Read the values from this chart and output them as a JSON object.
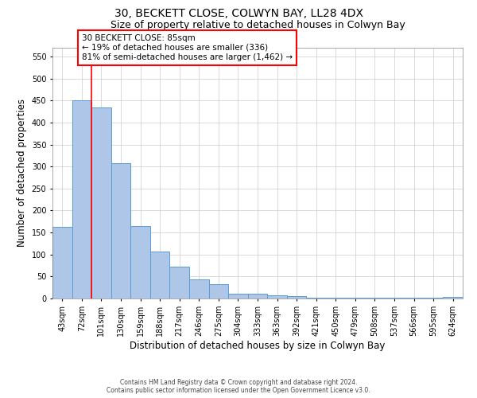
{
  "title1": "30, BECKETT CLOSE, COLWYN BAY, LL28 4DX",
  "title2": "Size of property relative to detached houses in Colwyn Bay",
  "xlabel": "Distribution of detached houses by size in Colwyn Bay",
  "ylabel": "Number of detached properties",
  "footer1": "Contains HM Land Registry data © Crown copyright and database right 2024.",
  "footer2": "Contains public sector information licensed under the Open Government Licence v3.0.",
  "bar_labels": [
    "43sqm",
    "72sqm",
    "101sqm",
    "130sqm",
    "159sqm",
    "188sqm",
    "217sqm",
    "246sqm",
    "275sqm",
    "304sqm",
    "333sqm",
    "363sqm",
    "392sqm",
    "421sqm",
    "450sqm",
    "479sqm",
    "508sqm",
    "537sqm",
    "566sqm",
    "595sqm",
    "624sqm"
  ],
  "bar_values": [
    163,
    450,
    435,
    307,
    165,
    106,
    73,
    44,
    32,
    10,
    10,
    8,
    5,
    2,
    2,
    1,
    1,
    1,
    1,
    1,
    4
  ],
  "bar_color": "#aec6e8",
  "bar_edge_color": "#5b9bd5",
  "vline_color": "red",
  "vline_x_bar_idx": 1,
  "annotation_text": "30 BECKETT CLOSE: 85sqm\n← 19% of detached houses are smaller (336)\n81% of semi-detached houses are larger (1,462) →",
  "annotation_box_color": "white",
  "annotation_box_edgecolor": "red",
  "ylim": [
    0,
    570
  ],
  "yticks": [
    0,
    50,
    100,
    150,
    200,
    250,
    300,
    350,
    400,
    450,
    500,
    550
  ],
  "bg_color": "white",
  "grid_color": "#cccccc",
  "title_fontsize": 10,
  "subtitle_fontsize": 9,
  "label_fontsize": 8.5,
  "tick_fontsize": 7,
  "annot_fontsize": 7.5
}
